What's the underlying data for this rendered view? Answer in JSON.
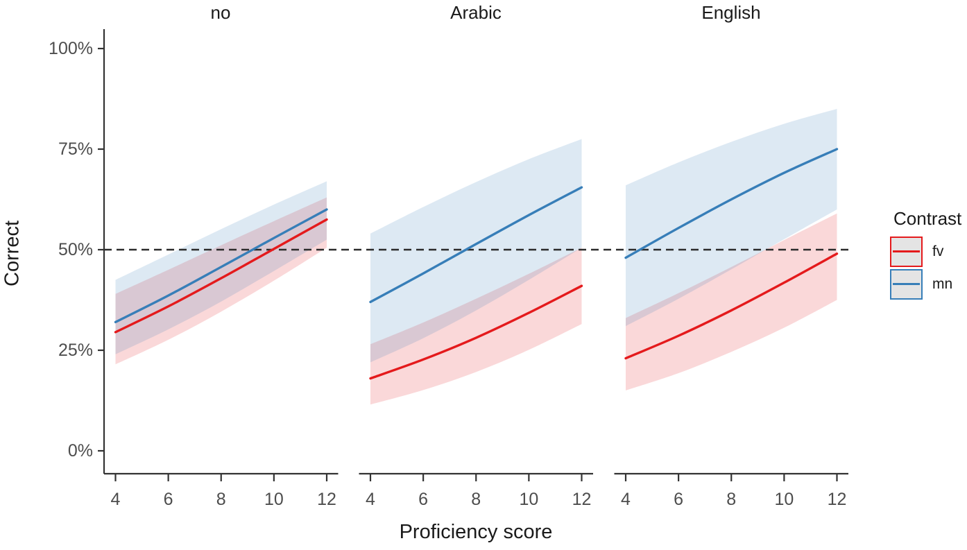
{
  "chart_data": {
    "type": "line",
    "title": "",
    "description": "Faceted fitted curves of percent correct responses vs proficiency score, by contrast type, with confidence ribbons and a dashed 50% chance line",
    "x": [
      4,
      6,
      8,
      10,
      12
    ],
    "x_axis": {
      "label": "Proficiency score",
      "range": [
        4,
        12
      ],
      "ticks": [
        {
          "value": 4,
          "label": "4"
        },
        {
          "value": 6,
          "label": "6"
        },
        {
          "value": 8,
          "label": "8"
        },
        {
          "value": 10,
          "label": "10"
        },
        {
          "value": 12,
          "label": "12"
        }
      ]
    },
    "y_axis": {
      "label": "Correct",
      "range": [
        0,
        100
      ],
      "unit": "%",
      "ticks": [
        {
          "value": 0,
          "label": "0%"
        },
        {
          "value": 25,
          "label": "25%"
        },
        {
          "value": 50,
          "label": "50%"
        },
        {
          "value": 75,
          "label": "75%"
        },
        {
          "value": 100,
          "label": "100%"
        }
      ]
    },
    "reference_line": {
      "value": 50,
      "style": "dashed",
      "color": "#2b2b2b"
    },
    "grid": "off",
    "legend": {
      "title": "Contrast",
      "position": "right",
      "entries": [
        {
          "label": "fv",
          "color": "#E41A1C"
        },
        {
          "label": "mn",
          "color": "#377EB8"
        }
      ]
    },
    "style": {
      "ribbon_alpha": 0.17,
      "line_width": 3.4,
      "axis_color": "#333333",
      "tick_label_color": "#4d4d4d"
    },
    "facets": [
      {
        "label": "no",
        "series": [
          {
            "name": "fv",
            "color": "#E41A1C",
            "values": [
              29.5,
              35.9,
              42.9,
              50.2,
              57.5
            ],
            "ci_lower": [
              21.5,
              27.6,
              34.6,
              42.3,
              50.5
            ],
            "ci_upper": [
              39.0,
              45.0,
              51.1,
              57.1,
              63.0
            ]
          },
          {
            "name": "mn",
            "color": "#377EB8",
            "values": [
              32.0,
              38.6,
              45.7,
              52.9,
              60.0
            ],
            "ci_lower": [
              24.0,
              30.2,
              37.1,
              44.7,
              52.5
            ],
            "ci_upper": [
              42.5,
              48.8,
              55.1,
              61.2,
              67.0
            ]
          }
        ]
      },
      {
        "label": "Arabic",
        "series": [
          {
            "name": "fv",
            "color": "#E41A1C",
            "values": [
              18.0,
              22.7,
              28.1,
              34.3,
              41.0
            ],
            "ci_lower": [
              11.5,
              15.1,
              19.6,
              25.1,
              31.5
            ],
            "ci_upper": [
              26.5,
              31.9,
              37.8,
              44.0,
              50.5
            ]
          },
          {
            "name": "mn",
            "color": "#377EB8",
            "values": [
              37.0,
              44.1,
              51.4,
              58.6,
              65.5
            ],
            "ci_lower": [
              22.0,
              28.0,
              34.9,
              42.5,
              50.5
            ],
            "ci_upper": [
              54.0,
              60.6,
              66.8,
              72.5,
              77.5
            ]
          }
        ]
      },
      {
        "label": "English",
        "series": [
          {
            "name": "fv",
            "color": "#E41A1C",
            "values": [
              23.0,
              28.6,
              34.9,
              41.8,
              49.0
            ],
            "ci_lower": [
              15.0,
              19.3,
              24.6,
              30.6,
              37.5
            ],
            "ci_upper": [
              33.0,
              39.2,
              45.7,
              52.4,
              59.0
            ]
          },
          {
            "name": "mn",
            "color": "#377EB8",
            "values": [
              48.0,
              55.4,
              62.5,
              69.1,
              75.0
            ],
            "ci_lower": [
              31.0,
              37.8,
              45.1,
              52.6,
              60.0
            ],
            "ci_upper": [
              66.0,
              71.7,
              76.8,
              81.3,
              85.0
            ]
          }
        ]
      }
    ]
  }
}
